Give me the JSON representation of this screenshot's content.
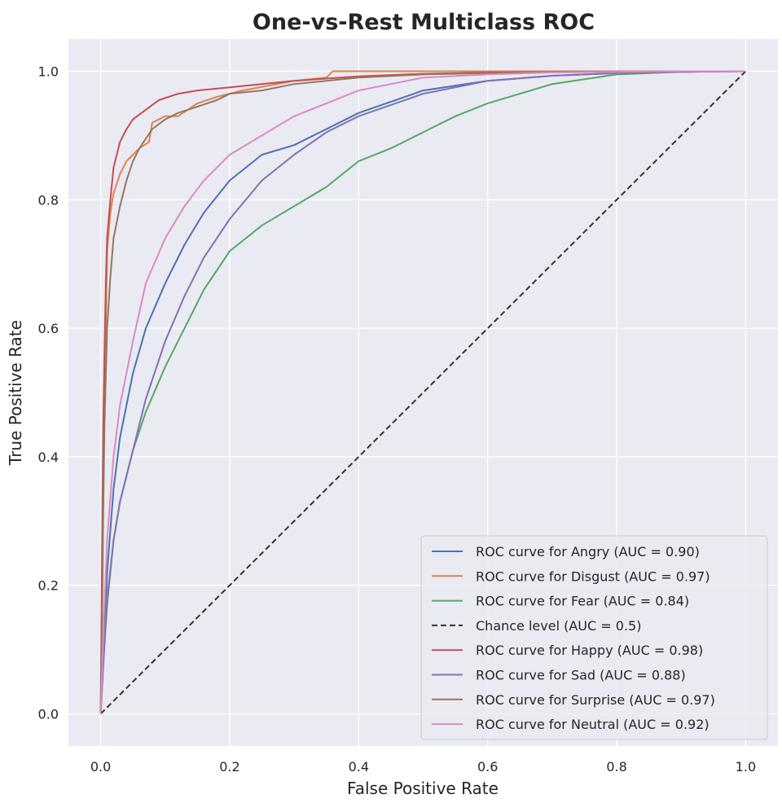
{
  "chart_data": {
    "type": "line",
    "title": "One-vs-Rest Multiclass ROC",
    "xlabel": "False Positive Rate",
    "ylabel": "True Positive Rate",
    "xlim": [
      -0.05,
      1.05
    ],
    "ylim": [
      -0.05,
      1.05
    ],
    "xticks": [
      0.0,
      0.2,
      0.4,
      0.6,
      0.8,
      1.0
    ],
    "yticks": [
      0.0,
      0.2,
      0.4,
      0.6,
      0.8,
      1.0
    ],
    "xtick_labels": [
      "0.0",
      "0.2",
      "0.4",
      "0.6",
      "0.8",
      "1.0"
    ],
    "ytick_labels": [
      "0.0",
      "0.2",
      "0.4",
      "0.6",
      "0.8",
      "1.0"
    ],
    "grid": true,
    "legend_position": "bottom-right",
    "series": [
      {
        "name": "ROC curve for Angry (AUC = 0.90)",
        "color": "#4c72b0",
        "dash": "solid",
        "x": [
          0,
          0.005,
          0.01,
          0.02,
          0.03,
          0.05,
          0.07,
          0.1,
          0.13,
          0.16,
          0.2,
          0.25,
          0.3,
          0.35,
          0.4,
          0.5,
          0.6,
          0.7,
          0.8,
          0.9,
          1.0
        ],
        "y": [
          0,
          0.12,
          0.22,
          0.35,
          0.43,
          0.53,
          0.6,
          0.67,
          0.73,
          0.78,
          0.83,
          0.87,
          0.885,
          0.91,
          0.935,
          0.97,
          0.985,
          0.993,
          0.997,
          0.999,
          1.0
        ]
      },
      {
        "name": "ROC curve for Disgust (AUC = 0.97)",
        "color": "#dd8452",
        "dash": "solid",
        "x": [
          0,
          0.003,
          0.005,
          0.008,
          0.01,
          0.015,
          0.02,
          0.03,
          0.04,
          0.05,
          0.06,
          0.075,
          0.08,
          0.1,
          0.12,
          0.15,
          0.18,
          0.22,
          0.3,
          0.35,
          0.36,
          0.5,
          0.7,
          1.0
        ],
        "y": [
          0,
          0.2,
          0.47,
          0.6,
          0.72,
          0.78,
          0.81,
          0.84,
          0.86,
          0.87,
          0.88,
          0.89,
          0.92,
          0.93,
          0.93,
          0.95,
          0.96,
          0.97,
          0.985,
          0.99,
          1.0,
          1.0,
          1.0,
          1.0
        ]
      },
      {
        "name": "ROC curve for Fear (AUC = 0.84)",
        "color": "#55a868",
        "dash": "solid",
        "x": [
          0,
          0.005,
          0.01,
          0.02,
          0.03,
          0.05,
          0.07,
          0.1,
          0.13,
          0.16,
          0.2,
          0.25,
          0.3,
          0.35,
          0.4,
          0.45,
          0.5,
          0.55,
          0.6,
          0.7,
          0.8,
          0.9,
          1.0
        ],
        "y": [
          0,
          0.1,
          0.18,
          0.27,
          0.33,
          0.41,
          0.47,
          0.54,
          0.6,
          0.66,
          0.72,
          0.76,
          0.79,
          0.82,
          0.86,
          0.88,
          0.905,
          0.93,
          0.95,
          0.98,
          0.995,
          0.999,
          1.0
        ]
      },
      {
        "name": "Chance level (AUC = 0.5)",
        "color": "#333333",
        "dash": "dashed",
        "x": [
          0,
          1
        ],
        "y": [
          0,
          1
        ]
      },
      {
        "name": "ROC curve for Happy (AUC = 0.98)",
        "color": "#c44e52",
        "dash": "solid",
        "x": [
          0,
          0.002,
          0.004,
          0.006,
          0.008,
          0.01,
          0.015,
          0.02,
          0.03,
          0.04,
          0.05,
          0.07,
          0.09,
          0.12,
          0.15,
          0.2,
          0.25,
          0.3,
          0.4,
          0.5,
          0.6,
          0.8,
          1.0
        ],
        "y": [
          0,
          0.25,
          0.45,
          0.56,
          0.67,
          0.74,
          0.8,
          0.85,
          0.89,
          0.91,
          0.925,
          0.94,
          0.955,
          0.965,
          0.97,
          0.975,
          0.98,
          0.985,
          0.992,
          0.996,
          0.998,
          0.999,
          1.0
        ]
      },
      {
        "name": "ROC curve for Sad (AUC = 0.88)",
        "color": "#8172b3",
        "dash": "solid",
        "x": [
          0,
          0.005,
          0.01,
          0.02,
          0.03,
          0.05,
          0.07,
          0.1,
          0.13,
          0.16,
          0.2,
          0.25,
          0.3,
          0.35,
          0.4,
          0.5,
          0.6,
          0.7,
          0.8,
          0.9,
          1.0
        ],
        "y": [
          0,
          0.09,
          0.17,
          0.27,
          0.33,
          0.41,
          0.49,
          0.58,
          0.65,
          0.71,
          0.77,
          0.83,
          0.87,
          0.905,
          0.93,
          0.965,
          0.985,
          0.993,
          0.997,
          0.999,
          1.0
        ]
      },
      {
        "name": "ROC curve for Surprise (AUC = 0.97)",
        "color": "#937860",
        "dash": "solid",
        "x": [
          0,
          0.003,
          0.006,
          0.01,
          0.015,
          0.02,
          0.03,
          0.04,
          0.05,
          0.06,
          0.08,
          0.1,
          0.12,
          0.15,
          0.18,
          0.2,
          0.25,
          0.3,
          0.4,
          0.5,
          0.7,
          1.0
        ],
        "y": [
          0,
          0.25,
          0.45,
          0.6,
          0.68,
          0.74,
          0.79,
          0.83,
          0.86,
          0.88,
          0.91,
          0.925,
          0.935,
          0.945,
          0.955,
          0.965,
          0.97,
          0.98,
          0.99,
          0.995,
          0.999,
          1.0
        ]
      },
      {
        "name": "ROC curve for Neutral (AUC = 0.92)",
        "color": "#da8bc3",
        "dash": "solid",
        "x": [
          0,
          0.005,
          0.01,
          0.02,
          0.03,
          0.05,
          0.07,
          0.1,
          0.13,
          0.16,
          0.2,
          0.25,
          0.3,
          0.35,
          0.4,
          0.45,
          0.5,
          0.6,
          0.7,
          0.8,
          0.9,
          1.0
        ],
        "y": [
          0,
          0.15,
          0.27,
          0.4,
          0.48,
          0.58,
          0.67,
          0.74,
          0.79,
          0.83,
          0.87,
          0.9,
          0.93,
          0.95,
          0.97,
          0.98,
          0.99,
          0.995,
          0.998,
          0.999,
          1.0,
          1.0
        ]
      }
    ]
  }
}
